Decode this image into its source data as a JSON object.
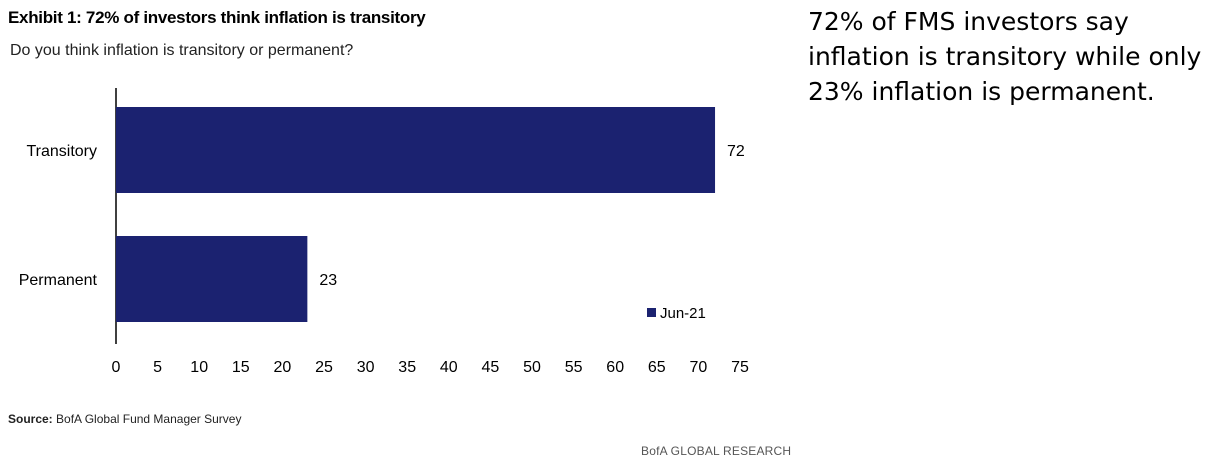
{
  "exhibit": {
    "title": "Exhibit 1: 72% of investors think inflation is transitory",
    "subtitle": "Do you think inflation is transitory or permanent?"
  },
  "side_note": "72% of FMS investors say inflation is transitory while only 23% inflation is permanent.",
  "source": {
    "label": "Source:",
    "text": "BofA Global Fund Manager Survey"
  },
  "footer": {
    "brand": "BofA GLOBAL RESEARCH"
  },
  "colors": {
    "bar": "#1b2270",
    "text": "#000000"
  },
  "chart_data": {
    "type": "bar",
    "orientation": "horizontal",
    "categories": [
      "Transitory",
      "Permanent"
    ],
    "series": [
      {
        "name": "Jun-21",
        "values": [
          72,
          23
        ]
      }
    ],
    "data_labels": [
      "72",
      "23"
    ],
    "xlim": [
      0,
      75
    ],
    "xticks": [
      "0",
      "5",
      "10",
      "15",
      "20",
      "25",
      "30",
      "35",
      "40",
      "45",
      "50",
      "55",
      "60",
      "65",
      "70",
      "75"
    ],
    "grid": false,
    "legend_position": "bottom-right"
  }
}
